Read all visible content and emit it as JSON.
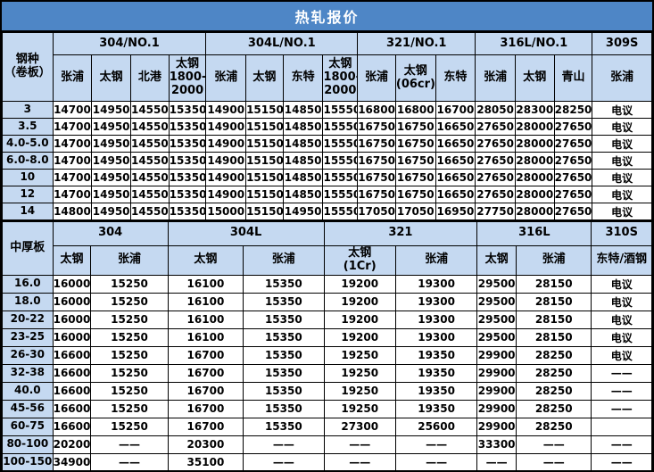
{
  "title": "热轧报价",
  "colors": {
    "title_bg": "#4e86c6",
    "title_text": "#ffffff",
    "header_bg": "#c5d9f1",
    "grid_line": "#000000",
    "cell_bg": "#ffffff",
    "cell_text": "#000000"
  },
  "coil": {
    "corner_label": "钢种\n（卷板）",
    "groups": [
      {
        "label": "304/NO.1",
        "suppliers": [
          "张浦",
          "太钢",
          "北港",
          "太钢\n1800-\n2000"
        ]
      },
      {
        "label": "304L/NO.1",
        "suppliers": [
          "张浦",
          "太钢",
          "东特",
          "太钢\n1800-\n2000"
        ]
      },
      {
        "label": "321/NO.1",
        "suppliers": [
          "张浦",
          "太钢\n(06cr)",
          "东特"
        ]
      },
      {
        "label": "316L/NO.1",
        "suppliers": [
          "张浦",
          "太钢",
          "青山"
        ]
      },
      {
        "label": "309S",
        "suppliers": [
          "张浦"
        ]
      }
    ],
    "rows": [
      {
        "label": "3",
        "values": [
          "14700",
          "14950",
          "14550",
          "15350",
          "14900",
          "15150",
          "14850",
          "15550",
          "16800",
          "16800",
          "16700",
          "28050",
          "28300",
          "28250",
          "电议"
        ]
      },
      {
        "label": "3.5",
        "values": [
          "14700",
          "14950",
          "14550",
          "15350",
          "14900",
          "15150",
          "14850",
          "15550",
          "16750",
          "16750",
          "16650",
          "27650",
          "28000",
          "27650",
          "电议"
        ]
      },
      {
        "label": "4.0-5.0",
        "values": [
          "14700",
          "14950",
          "14550",
          "15350",
          "14900",
          "15150",
          "14850",
          "15550",
          "16750",
          "16750",
          "16650",
          "27650",
          "28000",
          "27650",
          "电议"
        ]
      },
      {
        "label": "6.0-8.0",
        "values": [
          "14700",
          "14950",
          "14550",
          "15350",
          "14900",
          "15150",
          "14850",
          "15550",
          "16750",
          "16750",
          "16650",
          "27650",
          "28000",
          "27650",
          "电议"
        ]
      },
      {
        "label": "10",
        "values": [
          "14700",
          "14950",
          "14550",
          "15350",
          "14900",
          "15150",
          "14850",
          "15550",
          "16750",
          "16750",
          "16650",
          "27650",
          "28000",
          "27650",
          "电议"
        ]
      },
      {
        "label": "12",
        "values": [
          "14700",
          "14950",
          "14550",
          "15350",
          "14900",
          "15150",
          "14850",
          "15550",
          "16750",
          "16750",
          "16650",
          "27650",
          "28000",
          "27650",
          "电议"
        ]
      },
      {
        "label": "14",
        "values": [
          "14800",
          "14950",
          "14550",
          "15350",
          "15000",
          "15150",
          "14950",
          "15550",
          "17050",
          "17050",
          "16950",
          "27750",
          "28000",
          "27650",
          "电议"
        ]
      }
    ]
  },
  "plate": {
    "corner_label": "中厚板",
    "groups": [
      {
        "label": "304",
        "suppliers": [
          "太钢",
          "张浦"
        ]
      },
      {
        "label": "304L",
        "suppliers": [
          "太钢",
          "张浦"
        ]
      },
      {
        "label": "321",
        "suppliers": [
          "太钢\n(1Cr)",
          "张浦"
        ]
      },
      {
        "label": "316L",
        "suppliers": [
          "太钢",
          "张浦"
        ]
      },
      {
        "label": "310S",
        "suppliers": [
          "东特/酒钢"
        ]
      }
    ],
    "rows": [
      {
        "label": "16.0",
        "values": [
          "16000",
          "15250",
          "16100",
          "15350",
          "19200",
          "19300",
          "29500",
          "28150",
          "电议"
        ]
      },
      {
        "label": "18.0",
        "values": [
          "16000",
          "15250",
          "16100",
          "15350",
          "19200",
          "19300",
          "29500",
          "28150",
          "电议"
        ]
      },
      {
        "label": "20-22",
        "values": [
          "16000",
          "15250",
          "16100",
          "15350",
          "19200",
          "19300",
          "29500",
          "28150",
          "电议"
        ]
      },
      {
        "label": "23-25",
        "values": [
          "16000",
          "15250",
          "16100",
          "15350",
          "19200",
          "19300",
          "29500",
          "28150",
          "电议"
        ]
      },
      {
        "label": "26-30",
        "values": [
          "16600",
          "15250",
          "16700",
          "15350",
          "19250",
          "19350",
          "29900",
          "28250",
          "电议"
        ]
      },
      {
        "label": "32-38",
        "values": [
          "16600",
          "15250",
          "16700",
          "15350",
          "19250",
          "19350",
          "29900",
          "28250",
          "——"
        ]
      },
      {
        "label": "40.0",
        "values": [
          "16600",
          "15250",
          "16700",
          "15350",
          "19250",
          "19350",
          "29900",
          "28250",
          "——"
        ]
      },
      {
        "label": "45-56",
        "values": [
          "16600",
          "15250",
          "16700",
          "15350",
          "19250",
          "19350",
          "29900",
          "28250",
          "——"
        ]
      },
      {
        "label": "60-75",
        "values": [
          "16600",
          "15250",
          "16700",
          "15350",
          "27300",
          "25600",
          "29900",
          "28250",
          ""
        ]
      },
      {
        "label": "80-100",
        "values": [
          "20200",
          "——",
          "20300",
          "——",
          "——",
          "——",
          "33300",
          "——",
          "——"
        ]
      },
      {
        "label": "100-150",
        "values": [
          "34900",
          "——",
          "35100",
          "——",
          "——",
          "——",
          "——",
          "——",
          "——"
        ]
      }
    ]
  }
}
